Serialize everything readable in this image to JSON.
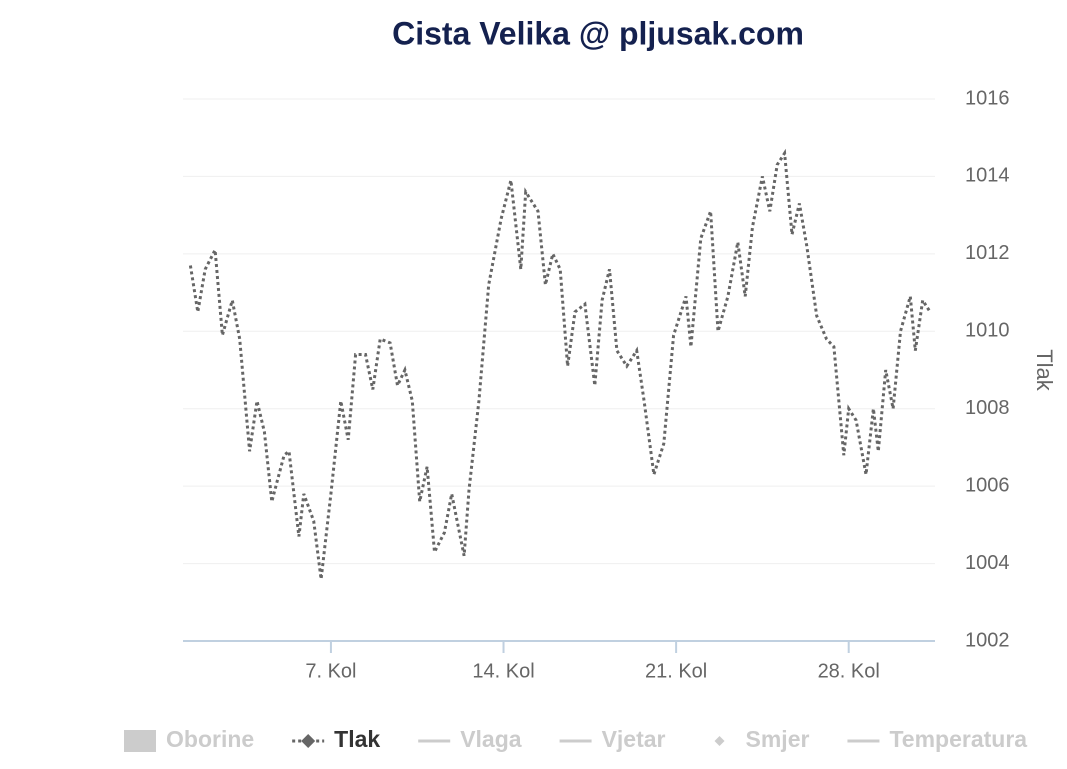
{
  "chart_data": {
    "type": "line",
    "title": "Cista Velika @ pljusak.com",
    "y_axis_title": "Tlak",
    "xlim": [
      1,
      31.5
    ],
    "xticks": [
      {
        "value": 7,
        "label": "7. Kol"
      },
      {
        "value": 14,
        "label": "14. Kol"
      },
      {
        "value": 21,
        "label": "21. Kol"
      },
      {
        "value": 28,
        "label": "28. Kol"
      }
    ],
    "ylim": [
      1002,
      1016
    ],
    "yticks": [
      1002,
      1004,
      1006,
      1008,
      1010,
      1012,
      1014,
      1016
    ],
    "grid": true,
    "series": [
      {
        "name": "Oborine",
        "symbol": "box",
        "visible": false
      },
      {
        "name": "Tlak",
        "color": "#666666",
        "symbol": "diamond",
        "dash": "dot",
        "visible": true,
        "x": [
          1.3,
          1.6,
          1.9,
          2.3,
          2.6,
          3.0,
          3.3,
          3.7,
          4.0,
          4.3,
          4.6,
          5.1,
          5.3,
          5.7,
          5.9,
          6.3,
          6.6,
          7.0,
          7.4,
          7.7,
          8.0,
          8.4,
          8.7,
          9.0,
          9.4,
          9.7,
          10.0,
          10.3,
          10.6,
          10.9,
          11.2,
          11.6,
          11.9,
          12.4,
          12.6,
          13.0,
          13.4,
          13.9,
          14.3,
          14.7,
          14.9,
          15.4,
          15.7,
          16.0,
          16.3,
          16.6,
          16.9,
          17.3,
          17.7,
          18.0,
          18.3,
          18.6,
          19.0,
          19.4,
          19.7,
          20.1,
          20.5,
          20.9,
          21.4,
          21.6,
          22.0,
          22.4,
          22.7,
          23.1,
          23.5,
          23.8,
          24.1,
          24.5,
          24.8,
          25.1,
          25.4,
          25.7,
          26.0,
          26.3,
          26.7,
          27.1,
          27.4,
          27.8,
          28.0,
          28.3,
          28.7,
          29.0,
          29.2,
          29.5,
          29.8,
          30.1,
          30.5,
          30.7,
          31.0,
          31.3
        ],
        "values": [
          1011.7,
          1010.5,
          1011.6,
          1012.1,
          1009.9,
          1010.8,
          1009.8,
          1006.9,
          1008.2,
          1007.4,
          1005.6,
          1006.8,
          1006.9,
          1004.7,
          1005.8,
          1005.1,
          1003.6,
          1005.8,
          1008.2,
          1007.2,
          1009.4,
          1009.4,
          1008.5,
          1009.8,
          1009.7,
          1008.6,
          1009.0,
          1008.2,
          1005.6,
          1006.5,
          1004.3,
          1004.8,
          1005.8,
          1004.2,
          1005.9,
          1008.2,
          1011.2,
          1012.9,
          1013.9,
          1011.6,
          1013.6,
          1013.1,
          1011.2,
          1012.0,
          1011.6,
          1009.1,
          1010.5,
          1010.7,
          1008.6,
          1010.8,
          1011.6,
          1009.5,
          1009.1,
          1009.5,
          1008.2,
          1006.3,
          1007.1,
          1009.9,
          1010.9,
          1009.6,
          1012.4,
          1013.1,
          1010.0,
          1010.9,
          1012.3,
          1010.9,
          1012.7,
          1014.0,
          1013.1,
          1014.3,
          1014.6,
          1012.5,
          1013.3,
          1012.2,
          1010.4,
          1009.8,
          1009.6,
          1006.8,
          1008.0,
          1007.7,
          1006.3,
          1008.0,
          1006.9,
          1009.0,
          1008.0,
          1010.0,
          1010.9,
          1009.5,
          1010.8,
          1010.5
        ]
      },
      {
        "name": "Vlaga",
        "symbol": "line",
        "visible": false
      },
      {
        "name": "Vjetar",
        "symbol": "line",
        "visible": false
      },
      {
        "name": "Smjer",
        "symbol": "diamond",
        "visible": false
      },
      {
        "name": "Temperatura",
        "symbol": "line",
        "visible": false
      }
    ]
  }
}
